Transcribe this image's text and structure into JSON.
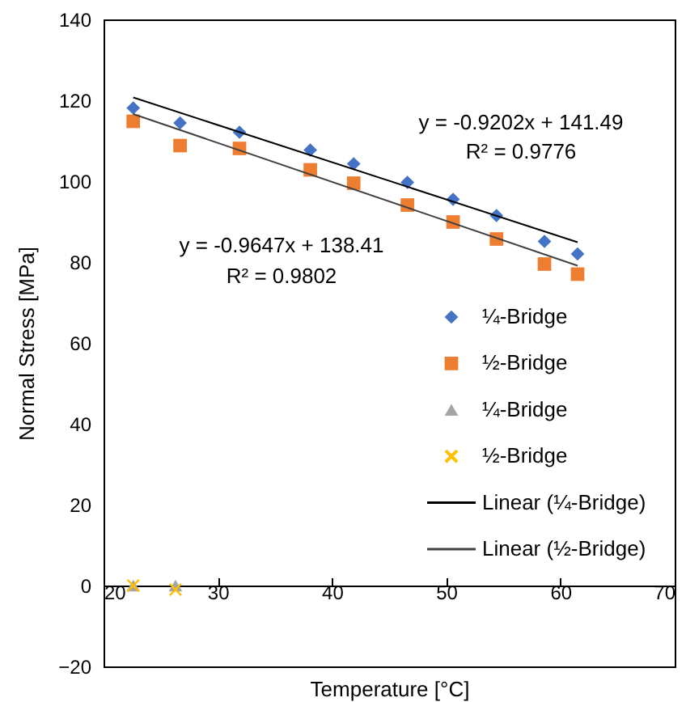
{
  "chart_data": {
    "type": "scatter",
    "xlabel": "Temperature [°C]",
    "ylabel": "Normal Stress [MPa]",
    "xlim": [
      20,
      70
    ],
    "xticks": [
      20,
      30,
      40,
      50,
      60,
      70
    ],
    "ylim": [
      -20,
      140
    ],
    "yticks": [
      -20,
      0,
      20,
      40,
      60,
      80,
      100,
      120,
      140
    ],
    "grid": false,
    "legend": "right",
    "annotations": [
      "y = -0.9202x + 141.49",
      "R² = 0.9776",
      "y = -0.9647x + 138.41",
      "R² = 0.9802"
    ],
    "x": [
      22.6,
      26.7,
      31.9,
      38.1,
      41.9,
      46.6,
      50.6,
      54.4,
      58.6,
      61.5
    ],
    "series": [
      {
        "name": "¼-Bridge",
        "color": "#4472c4",
        "marker": "diamond",
        "values": [
          118.1,
          114.4,
          112.1,
          107.7,
          104.3,
          99.7,
          95.5,
          91.5,
          85.1,
          82
        ]
      },
      {
        "name": "½-Bridge",
        "color": "#ed7d31",
        "marker": "square",
        "values": [
          114.8,
          108.8,
          108.1,
          102.8,
          99.5,
          94.1,
          89.9,
          85.7,
          79.5,
          77
        ]
      },
      {
        "name": "¼-Bridge",
        "color": "#a5a5a5",
        "marker": "triangle",
        "x": [
          22.6,
          26.3
        ],
        "values": [
          0,
          0
        ]
      },
      {
        "name": "½-Bridge",
        "color": "#ffc000",
        "marker": "cross",
        "x": [
          22.6,
          26.3
        ],
        "values": [
          0,
          -1
        ]
      },
      {
        "name": "Linear (¼-Bridge)",
        "type": "line",
        "color": "#000000",
        "marker": "none",
        "x": [
          22.6,
          61.5
        ],
        "values": [
          120.7,
          84.9
        ]
      },
      {
        "name": "Linear (½-Bridge)",
        "type": "line",
        "color": "#404040",
        "marker": "none",
        "x": [
          22.6,
          61.5
        ],
        "values": [
          116.6,
          79.1
        ]
      }
    ]
  }
}
